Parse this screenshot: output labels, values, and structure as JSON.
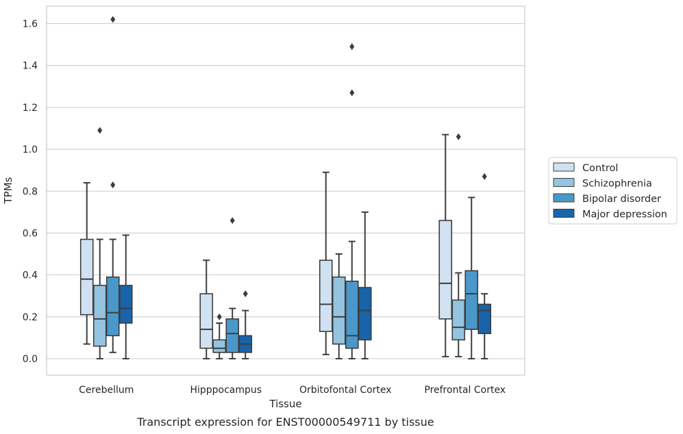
{
  "chart_data": {
    "type": "box",
    "caption": "Transcript expression for ENST00000549711 by tissue",
    "xlabel": "Tissue",
    "ylabel": "TPMs",
    "ylim": [
      -0.08,
      1.7
    ],
    "yticks": [
      0.0,
      0.2,
      0.4,
      0.6,
      0.8,
      1.0,
      1.2,
      1.4,
      1.6
    ],
    "ytick_labels": [
      "0.0",
      "0.2",
      "0.4",
      "0.6",
      "0.8",
      "1.0",
      "1.2",
      "1.4",
      "1.6"
    ],
    "grid": "horizontal",
    "legend_position": "right",
    "categories": [
      "Cerebellum",
      "Hipppocampus",
      "Orbitofontal Cortex",
      "Prefrontal Cortex"
    ],
    "series": [
      {
        "name": "Control",
        "color": "#d0e1f2",
        "boxes": [
          {
            "whislo": 0.07,
            "q1": 0.21,
            "med": 0.38,
            "q3": 0.57,
            "whishi": 0.84,
            "fliers": []
          },
          {
            "whislo": 0.0,
            "q1": 0.05,
            "med": 0.14,
            "q3": 0.31,
            "whishi": 0.47,
            "fliers": []
          },
          {
            "whislo": 0.02,
            "q1": 0.13,
            "med": 0.26,
            "q3": 0.47,
            "whishi": 0.89,
            "fliers": []
          },
          {
            "whislo": 0.01,
            "q1": 0.19,
            "med": 0.36,
            "q3": 0.66,
            "whishi": 1.07,
            "fliers": []
          }
        ]
      },
      {
        "name": "Schizophrenia",
        "color": "#94c4df",
        "boxes": [
          {
            "whislo": 0.0,
            "q1": 0.06,
            "med": 0.19,
            "q3": 0.35,
            "whishi": 0.57,
            "fliers": [
              1.09
            ]
          },
          {
            "whislo": 0.0,
            "q1": 0.03,
            "med": 0.05,
            "q3": 0.09,
            "whishi": 0.17,
            "fliers": [
              0.2
            ]
          },
          {
            "whislo": 0.0,
            "q1": 0.07,
            "med": 0.2,
            "q3": 0.39,
            "whishi": 0.5,
            "fliers": []
          },
          {
            "whislo": 0.01,
            "q1": 0.09,
            "med": 0.15,
            "q3": 0.28,
            "whishi": 0.41,
            "fliers": [
              1.06
            ]
          }
        ]
      },
      {
        "name": "Bipolar disorder",
        "color": "#4a98c9",
        "boxes": [
          {
            "whislo": 0.03,
            "q1": 0.11,
            "med": 0.22,
            "q3": 0.39,
            "whishi": 0.57,
            "fliers": [
              0.83,
              1.62
            ]
          },
          {
            "whislo": 0.0,
            "q1": 0.03,
            "med": 0.12,
            "q3": 0.19,
            "whishi": 0.24,
            "fliers": [
              0.66
            ]
          },
          {
            "whislo": 0.0,
            "q1": 0.05,
            "med": 0.11,
            "q3": 0.37,
            "whishi": 0.56,
            "fliers": [
              1.27,
              1.49
            ]
          },
          {
            "whislo": 0.0,
            "q1": 0.14,
            "med": 0.31,
            "q3": 0.42,
            "whishi": 0.77,
            "fliers": []
          }
        ]
      },
      {
        "name": "Major depression",
        "color": "#1764ab",
        "boxes": [
          {
            "whislo": 0.0,
            "q1": 0.17,
            "med": 0.24,
            "q3": 0.35,
            "whishi": 0.59,
            "fliers": []
          },
          {
            "whislo": 0.0,
            "q1": 0.03,
            "med": 0.07,
            "q3": 0.11,
            "whishi": 0.23,
            "fliers": [
              0.31
            ]
          },
          {
            "whislo": 0.0,
            "q1": 0.09,
            "med": 0.23,
            "q3": 0.34,
            "whishi": 0.7,
            "fliers": []
          },
          {
            "whislo": 0.0,
            "q1": 0.12,
            "med": 0.23,
            "q3": 0.26,
            "whishi": 0.31,
            "fliers": [
              0.87
            ]
          }
        ]
      }
    ]
  }
}
